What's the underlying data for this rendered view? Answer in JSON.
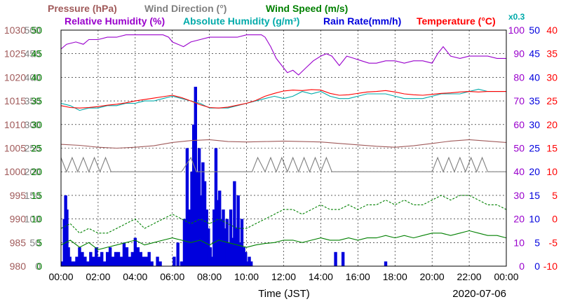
{
  "chart_data": {
    "type": "line",
    "header": {
      "row1": [
        {
          "text": "Pressure (hPa)",
          "color": "#a05a5a"
        },
        {
          "text": "Wind Direction (°)",
          "color": "#808080"
        },
        {
          "text": "Wind Speed (m/s)",
          "color": "#008000"
        }
      ],
      "row2": [
        {
          "text": "Relative Humidity (%)",
          "color": "#9900cc"
        },
        {
          "text": "Absolute Humidity (g/m³)",
          "color": "#00aaaa"
        },
        {
          "text": "Rain Rate(mm/h)",
          "color": "#0000dd"
        },
        {
          "text": "Temperature (°C)",
          "color": "#ff0000"
        },
        {
          "text": "x0.3",
          "color": "#00aaaa"
        }
      ]
    },
    "xlabel": "Time (JST)",
    "date": "2020-07-06",
    "x_ticks": [
      "00:00",
      "02:00",
      "04:00",
      "06:00",
      "08:00",
      "10:00",
      "12:00",
      "14:00",
      "16:00",
      "18:00",
      "20:00",
      "22:00",
      "00:00"
    ],
    "axes": [
      {
        "id": "pressure",
        "color": "#a05a5a",
        "ticks": [
          "1030",
          "1025",
          "1020",
          "1015",
          "1010",
          "1005",
          "1000",
          "995",
          "990",
          "985",
          "980"
        ],
        "range": [
          980,
          1030
        ]
      },
      {
        "id": "wind_direction",
        "color": "#808080",
        "ticks": [
          "500",
          "450",
          "400",
          "350",
          "300",
          "250",
          "200",
          "150",
          "100",
          "50",
          "0"
        ],
        "range": [
          0,
          500
        ]
      },
      {
        "id": "wind_speed",
        "color": "#008000",
        "ticks": [
          "50",
          "45",
          "40",
          "35",
          "30",
          "25",
          "20",
          "15",
          "10",
          "5",
          "0"
        ],
        "range": [
          0,
          50
        ]
      },
      {
        "id": "humidity",
        "color": "#9900cc",
        "ticks": [
          "100",
          "90",
          "80",
          "70",
          "60",
          "50",
          "40",
          "30",
          "20",
          "10",
          "0"
        ],
        "range": [
          0,
          100
        ]
      },
      {
        "id": "rain_rate",
        "color": "#0000dd",
        "ticks": [
          "50",
          "45",
          "40",
          "35",
          "30",
          "25",
          "20",
          "15",
          "10",
          "5",
          "0"
        ],
        "range": [
          0,
          50
        ]
      },
      {
        "id": "temperature",
        "color": "#ff0000",
        "ticks": [
          "40",
          "35",
          "30",
          "25",
          "20",
          "15",
          "10",
          "5",
          "0",
          "-5",
          "-10"
        ],
        "range": [
          -10,
          40
        ]
      }
    ],
    "series": [
      {
        "name": "Relative Humidity",
        "axis": "humidity",
        "color": "#9900cc",
        "x": [
          0,
          0.3,
          0.8,
          1.2,
          1.5,
          2.0,
          2.5,
          3.0,
          3.5,
          4.0,
          4.5,
          5.0,
          5.5,
          5.8,
          6.0,
          6.3,
          6.6,
          7.0,
          7.5,
          8.0,
          8.5,
          9.0,
          9.5,
          10.0,
          10.5,
          10.8,
          11.0,
          11.3,
          11.6,
          11.9,
          12.2,
          12.5,
          12.8,
          13.2,
          13.6,
          14.0,
          14.3,
          14.6,
          15.0,
          15.4,
          15.8,
          16.2,
          16.6,
          17.0,
          17.5,
          18.0,
          18.5,
          19.0,
          19.5,
          20.0,
          20.3,
          20.6,
          21.0,
          21.5,
          22.0,
          22.5,
          23.0,
          23.5,
          24.0
        ],
        "y": [
          92,
          94,
          95,
          94,
          96,
          96,
          97,
          97,
          98,
          98,
          98,
          98,
          98,
          97,
          95,
          94,
          93,
          95,
          96,
          97,
          97,
          97,
          97,
          98,
          98,
          98,
          97,
          93,
          88,
          85,
          82,
          83,
          81,
          84,
          87,
          89,
          90,
          89,
          85,
          89,
          88,
          87,
          86,
          86,
          87,
          87,
          86,
          87,
          87,
          86,
          90,
          93,
          89,
          88,
          89,
          89,
          89,
          88,
          88
        ]
      },
      {
        "name": "Absolute Humidity",
        "axis": "humidity",
        "color": "#00aaaa",
        "x": [
          0,
          0.5,
          1.0,
          1.5,
          2.0,
          2.5,
          3.0,
          3.5,
          4.0,
          4.5,
          5.0,
          5.5,
          6.0,
          6.5,
          7.0,
          7.5,
          8.0,
          8.5,
          9.0,
          9.5,
          10.0,
          10.5,
          11.0,
          11.5,
          12.0,
          12.5,
          13.0,
          13.5,
          14.0,
          14.5,
          15.0,
          15.5,
          16.0,
          16.5,
          17.0,
          17.5,
          18.0,
          18.5,
          19.0,
          19.5,
          20.0,
          20.5,
          21.0,
          21.5,
          22.0,
          22.5,
          23.0,
          23.5,
          24.0
        ],
        "y": [
          69,
          68,
          66,
          67,
          67,
          68,
          68,
          69,
          69,
          70,
          70,
          71,
          72,
          71,
          70,
          69,
          67,
          67,
          67,
          68,
          69,
          70,
          71,
          72,
          71,
          72,
          74,
          73,
          74,
          72,
          71,
          71,
          72,
          73,
          73,
          73,
          72,
          71,
          71,
          71,
          72,
          73,
          73,
          73,
          74,
          75,
          74,
          74,
          74
        ]
      },
      {
        "name": "Temperature",
        "axis": "temperature",
        "color": "#ff0000",
        "x": [
          0,
          0.5,
          1.0,
          1.5,
          2.0,
          2.5,
          3.0,
          3.5,
          4.0,
          4.5,
          5.0,
          5.5,
          6.0,
          6.5,
          7.0,
          7.5,
          8.0,
          8.5,
          9.0,
          9.5,
          10.0,
          10.5,
          11.0,
          11.5,
          12.0,
          12.5,
          13.0,
          13.5,
          14.0,
          14.5,
          15.0,
          15.5,
          16.0,
          16.5,
          17.0,
          17.5,
          18.0,
          18.5,
          19.0,
          19.5,
          20.0,
          20.5,
          21.0,
          21.5,
          22.0,
          22.5,
          23.0,
          23.5,
          24.0
        ],
        "y": [
          24,
          23.6,
          23.5,
          23.6,
          23.8,
          24.1,
          24.3,
          24.6,
          25,
          25.3,
          25.6,
          25.9,
          26.2,
          25.7,
          25,
          24.2,
          23.6,
          23.5,
          23.7,
          24.1,
          24.5,
          25.1,
          26,
          26.6,
          27.1,
          27.3,
          27.2,
          27.4,
          27.3,
          26.6,
          26.2,
          26.3,
          26.6,
          26.9,
          27,
          27.2,
          26.9,
          26.5,
          26.3,
          26.2,
          26.4,
          26.6,
          26.7,
          26.9,
          27,
          26.9,
          27,
          27,
          27
        ]
      },
      {
        "name": "Pressure",
        "axis": "pressure",
        "color": "#a05a5a",
        "x": [
          0,
          1,
          2,
          3,
          4,
          5,
          6,
          7,
          8,
          9,
          10,
          11,
          12,
          13,
          14,
          15,
          16,
          17,
          18,
          19,
          20,
          21,
          22,
          23,
          24
        ],
        "y": [
          1005.8,
          1005.6,
          1005.2,
          1005.0,
          1005.2,
          1005.5,
          1006.2,
          1006.6,
          1006.8,
          1006.4,
          1006.3,
          1006.4,
          1006.5,
          1006.4,
          1006.3,
          1006.0,
          1005.7,
          1005.4,
          1005.2,
          1005.5,
          1006.0,
          1006.5,
          1006.8,
          1006.5,
          1006.2
        ]
      },
      {
        "name": "Wind Speed",
        "axis": "wind_speed",
        "color": "#008000",
        "x": [
          0,
          0.5,
          1.0,
          1.5,
          2.0,
          2.5,
          3.0,
          3.5,
          4.0,
          4.5,
          5.0,
          5.5,
          6.0,
          6.5,
          7.0,
          7.5,
          8.0,
          8.5,
          9.0,
          9.5,
          10.0,
          10.5,
          11.0,
          11.5,
          12.0,
          12.5,
          13.0,
          13.5,
          14.0,
          14.5,
          15.0,
          15.5,
          16.0,
          16.5,
          17.0,
          17.5,
          18.0,
          18.5,
          19.0,
          19.5,
          20.0,
          20.5,
          21.0,
          21.5,
          22.0,
          22.5,
          23.0,
          23.5,
          24.0
        ],
        "y": [
          4.5,
          5.5,
          4.0,
          5.0,
          3.5,
          4.0,
          4.5,
          5.0,
          5.5,
          4.5,
          5.0,
          5.5,
          6.0,
          5.5,
          5.0,
          5.5,
          4.5,
          5.5,
          5.0,
          4.5,
          4.0,
          4.5,
          4.8,
          5.0,
          5.5,
          5.5,
          5.0,
          5.5,
          6.0,
          5.5,
          5.5,
          6.0,
          5.5,
          6.0,
          6.0,
          6.5,
          6.0,
          6.5,
          6.0,
          6.5,
          7.0,
          7.0,
          6.5,
          7.0,
          7.5,
          7.0,
          6.5,
          6.5,
          6.0
        ]
      },
      {
        "name": "Wind Speed Max",
        "axis": "wind_speed",
        "color": "#008000",
        "style": "dashed",
        "x": [
          0,
          0.5,
          1.0,
          1.5,
          2.0,
          2.5,
          3.0,
          3.5,
          4.0,
          4.5,
          5.0,
          5.5,
          6.0,
          6.5,
          7.0,
          7.5,
          8.0,
          8.5,
          9.0,
          9.5,
          10.0,
          10.5,
          11.0,
          11.5,
          12.0,
          12.5,
          13.0,
          13.5,
          14.0,
          14.5,
          15.0,
          15.5,
          16.0,
          16.5,
          17.0,
          17.5,
          18.0,
          18.5,
          19.0,
          19.5,
          20.0,
          20.5,
          21.0,
          21.5,
          22.0,
          22.5,
          23.0,
          23.5,
          24.0
        ],
        "y": [
          8,
          9,
          7,
          8,
          7,
          7,
          8,
          9,
          10,
          8,
          9,
          10,
          11,
          10,
          9,
          10,
          9,
          10,
          9,
          8,
          8,
          9,
          10,
          11,
          12,
          12,
          11,
          12,
          13,
          12,
          12,
          13,
          12,
          13,
          13,
          14,
          13,
          14,
          13,
          13,
          14,
          15,
          14,
          15,
          15,
          14,
          13,
          13,
          12
        ]
      },
      {
        "name": "Wind Direction",
        "axis": "wind_direction",
        "color": "#808080",
        "x": [
          0,
          0.3,
          0.6,
          0.9,
          1.2,
          1.5,
          1.8,
          2.1,
          2.4,
          2.7,
          3.0,
          3.5,
          4.0,
          4.5,
          5.0,
          5.5,
          6.0,
          6.5,
          7.0,
          7.3,
          7.6,
          8.0,
          8.5,
          9.0,
          9.5,
          10.0,
          10.3,
          10.6,
          11.0,
          11.3,
          11.6,
          11.9,
          12.2,
          12.5,
          12.8,
          13.1,
          13.4,
          13.7,
          14.0,
          14.3,
          14.6,
          15.0,
          15.5,
          16.0,
          16.5,
          17.0,
          17.5,
          18.0,
          18.5,
          19.0,
          19.5,
          20.0,
          20.3,
          20.6,
          20.9,
          21.2,
          21.5,
          21.8,
          22.1,
          22.4,
          22.7,
          23.0,
          23.5,
          24.0
        ],
        "y": [
          230,
          200,
          230,
          200,
          230,
          200,
          230,
          200,
          230,
          200,
          200,
          200,
          200,
          200,
          200,
          200,
          200,
          200,
          230,
          200,
          200,
          200,
          200,
          200,
          200,
          200,
          200,
          230,
          200,
          230,
          200,
          230,
          200,
          230,
          200,
          230,
          200,
          230,
          200,
          230,
          200,
          200,
          200,
          200,
          200,
          200,
          200,
          200,
          200,
          200,
          200,
          200,
          230,
          200,
          230,
          200,
          230,
          200,
          230,
          200,
          230,
          200,
          200,
          200
        ]
      }
    ],
    "rain": {
      "name": "Rain Rate",
      "axis": "rain_rate",
      "color": "#0000dd",
      "x": [
        0.1,
        0.18,
        0.25,
        0.32,
        0.4,
        0.48,
        0.55,
        0.62,
        0.7,
        0.85,
        1.0,
        1.15,
        1.3,
        1.45,
        1.6,
        1.75,
        1.9,
        2.05,
        2.2,
        2.35,
        2.5,
        2.65,
        2.8,
        2.95,
        3.1,
        3.25,
        3.4,
        3.55,
        3.7,
        3.85,
        4.0,
        4.15,
        4.3,
        4.45,
        4.6,
        4.75,
        4.9,
        5.05,
        5.2,
        5.35,
        5.5,
        6.1,
        6.3,
        6.5,
        6.65,
        6.8,
        6.95,
        7.05,
        7.15,
        7.25,
        7.35,
        7.45,
        7.55,
        7.65,
        7.75,
        7.85,
        7.95,
        8.05,
        8.15,
        8.25,
        8.35,
        8.45,
        8.55,
        8.65,
        8.75,
        8.85,
        8.95,
        9.05,
        9.15,
        9.25,
        9.35,
        9.45,
        9.55,
        9.65,
        9.75,
        9.85,
        9.95,
        10.05,
        10.15,
        10.25,
        14.8,
        15.2,
        17.5
      ],
      "y": [
        1,
        10,
        15,
        12,
        4,
        2,
        1,
        0,
        1,
        2,
        4,
        3,
        2,
        1,
        3,
        2,
        4,
        2,
        3,
        1,
        3,
        4,
        2,
        3,
        3,
        2,
        5,
        4,
        2,
        3,
        6,
        4,
        3,
        2,
        2,
        3,
        1,
        0,
        2,
        1,
        0,
        2,
        5,
        1,
        10,
        25,
        12,
        20,
        30,
        38,
        20,
        25,
        15,
        22,
        18,
        12,
        8,
        4,
        2,
        12,
        25,
        14,
        16,
        10,
        12,
        8,
        10,
        5,
        12,
        6,
        18,
        8,
        15,
        5,
        10,
        4,
        3,
        1,
        2,
        1,
        3,
        3,
        1
      ]
    }
  }
}
